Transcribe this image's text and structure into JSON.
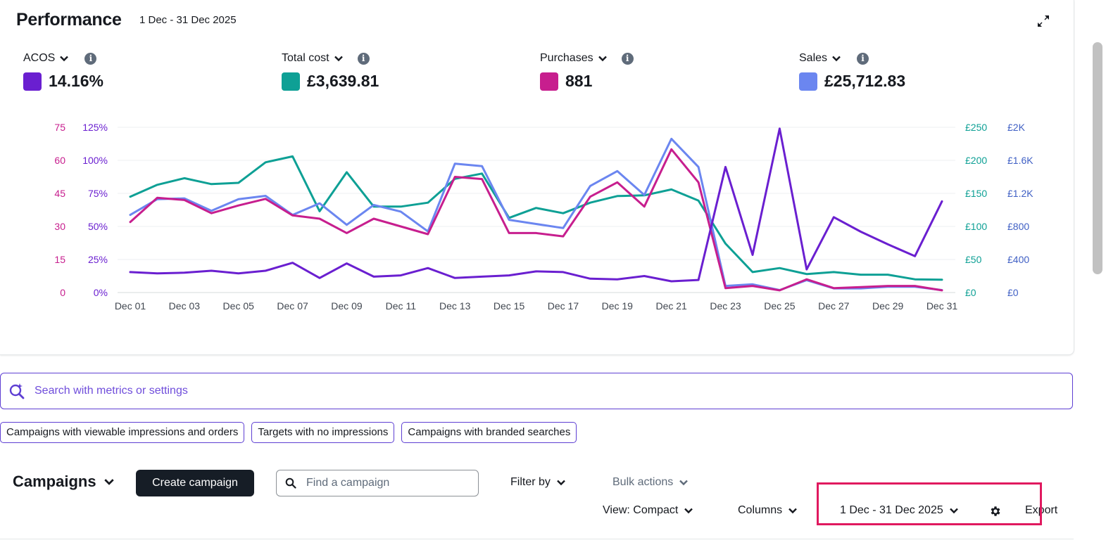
{
  "performance": {
    "title": "Performance",
    "date_range": "1 Dec - 31 Dec 2025",
    "metrics": [
      {
        "label": "ACOS",
        "value": "14.16%",
        "color": "#6a1fd0"
      },
      {
        "label": "Total cost",
        "value": "£3,639.81",
        "color": "#0ea095"
      },
      {
        "label": "Purchases",
        "value": "881",
        "color": "#c71e8e"
      },
      {
        "label": "Sales",
        "value": "£25,712.83",
        "color": "#6b86f0"
      }
    ],
    "info_glyph": "i"
  },
  "chart_data": {
    "type": "line",
    "x": [
      "Dec 01",
      "Dec 02",
      "Dec 03",
      "Dec 04",
      "Dec 05",
      "Dec 06",
      "Dec 07",
      "Dec 08",
      "Dec 09",
      "Dec 10",
      "Dec 11",
      "Dec 12",
      "Dec 13",
      "Dec 14",
      "Dec 15",
      "Dec 16",
      "Dec 17",
      "Dec 18",
      "Dec 19",
      "Dec 20",
      "Dec 21",
      "Dec 22",
      "Dec 23",
      "Dec 24",
      "Dec 25",
      "Dec 26",
      "Dec 27",
      "Dec 28",
      "Dec 29",
      "Dec 30",
      "Dec 31"
    ],
    "x_tick_labels": [
      "Dec 01",
      "Dec 03",
      "Dec 05",
      "Dec 07",
      "Dec 09",
      "Dec 11",
      "Dec 13",
      "Dec 15",
      "Dec 17",
      "Dec 19",
      "Dec 21",
      "Dec 23",
      "Dec 25",
      "Dec 27",
      "Dec 29",
      "Dec 31"
    ],
    "axes": {
      "left_outer": {
        "ticks": [
          "0",
          "15",
          "30",
          "45",
          "60",
          "75"
        ],
        "range": [
          0,
          75
        ],
        "color": "#c71e8e"
      },
      "left_inner": {
        "ticks": [
          "0%",
          "25%",
          "50%",
          "75%",
          "100%",
          "125%"
        ],
        "range": [
          0,
          125
        ],
        "color": "#6a1fd0"
      },
      "right_inner": {
        "ticks": [
          "£0",
          "£50",
          "£100",
          "£150",
          "£200",
          "£250"
        ],
        "range": [
          0,
          250
        ],
        "color": "#0ea095"
      },
      "right_outer": {
        "ticks": [
          "£0",
          "£400",
          "£800",
          "£1.2K",
          "£1.6K",
          "£2K"
        ],
        "range": [
          0,
          2000
        ],
        "color": "#3f5fc4"
      }
    },
    "grid": true,
    "series": [
      {
        "name": "ACOS",
        "axis": "left_inner",
        "color": "#6a1fd0",
        "values": [
          15.5,
          14.5,
          15,
          16.5,
          14.5,
          16.5,
          22.5,
          11,
          22,
          12,
          13,
          18.5,
          11,
          12,
          13,
          16,
          15.5,
          10.5,
          10,
          12.5,
          8.5,
          9.5,
          95,
          28.5,
          124,
          17.5,
          57,
          46,
          36.5,
          27.5,
          69
        ]
      },
      {
        "name": "Total cost",
        "axis": "right_inner",
        "color": "#0ea095",
        "values": [
          145,
          163,
          173,
          164,
          166,
          197,
          206,
          123,
          182,
          130,
          130,
          136,
          172,
          180,
          113,
          128,
          120,
          136,
          146,
          147,
          156,
          139,
          74,
          31,
          37,
          28,
          31,
          27,
          27,
          20,
          19.5
        ]
      },
      {
        "name": "Purchases",
        "axis": "left_outer",
        "color": "#c71e8e",
        "values": [
          32,
          43,
          42,
          36,
          39.5,
          42.5,
          35,
          33.5,
          27,
          33.5,
          30,
          26.5,
          52.5,
          51.5,
          27,
          27,
          25.5,
          43.5,
          50,
          39,
          65,
          50,
          2,
          3,
          1,
          6,
          2,
          2.5,
          3,
          3,
          1
        ]
      },
      {
        "name": "Sales",
        "axis": "right_outer",
        "color": "#6b86f0",
        "values": [
          940,
          1130,
          1140,
          990,
          1130,
          1170,
          940,
          1080,
          820,
          1060,
          980,
          740,
          1560,
          1530,
          880,
          830,
          780,
          1290,
          1470,
          1180,
          1860,
          1520,
          80,
          100,
          30,
          150,
          50,
          50,
          70,
          70,
          30
        ]
      }
    ]
  },
  "search": {
    "placeholder": "Search with metrics or settings"
  },
  "chips": [
    "Campaigns with viewable impressions and orders",
    "Targets with no impressions",
    "Campaigns with branded searches"
  ],
  "campaigns": {
    "title": "Campaigns",
    "create_label": "Create campaign",
    "find_placeholder": "Find a campaign",
    "filter_label": "Filter by",
    "bulk_label": "Bulk actions",
    "view_label": "View: Compact",
    "columns_label": "Columns",
    "date_label": "1 Dec - 31 Dec 2025",
    "export_label": "Export"
  },
  "highlight_color": "#e0195f"
}
